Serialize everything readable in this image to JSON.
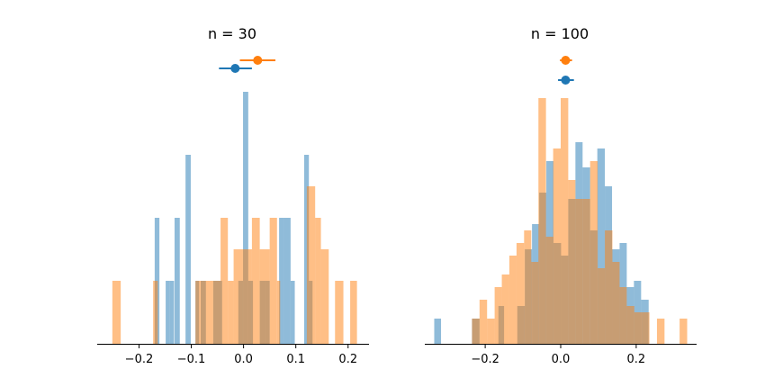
{
  "colors": {
    "series_a": "#1f77b4",
    "series_b": "#ff7f0e",
    "axis": "#000000"
  },
  "chart_data": [
    {
      "type": "histogram",
      "title": "n = 30",
      "xlim": [
        -0.28,
        0.24
      ],
      "ylim": [
        0,
        4.2
      ],
      "xticks": [
        -0.2,
        -0.1,
        0.0,
        0.1,
        0.2
      ],
      "xtick_labels": [
        "−0.2",
        "−0.1",
        "0.0",
        "0.1",
        "0.2"
      ],
      "grid": false,
      "yaxis_visible": false,
      "series": [
        {
          "color_key": "series_a",
          "alpha": 0.5,
          "bins": [
            [
              -0.17,
              -0.161,
              2
            ],
            [
              -0.149,
              -0.141,
              1
            ],
            [
              -0.141,
              -0.133,
              1
            ],
            [
              -0.132,
              -0.122,
              2
            ],
            [
              -0.111,
              -0.101,
              3
            ],
            [
              -0.092,
              -0.085,
              1
            ],
            [
              -0.082,
              -0.072,
              1
            ],
            [
              -0.058,
              -0.051,
              1
            ],
            [
              -0.051,
              -0.041,
              1
            ],
            [
              -0.01,
              -0.001,
              1
            ],
            [
              -0.001,
              0.009,
              4
            ],
            [
              0.009,
              0.018,
              1
            ],
            [
              0.031,
              0.041,
              1
            ],
            [
              0.041,
              0.05,
              1
            ],
            [
              0.068,
              0.078,
              2
            ],
            [
              0.078,
              0.09,
              2
            ],
            [
              0.09,
              0.098,
              1
            ],
            [
              0.116,
              0.125,
              3
            ],
            [
              0.125,
              0.132,
              1
            ]
          ],
          "mean": -0.016,
          "ci": [
            -0.047,
            0.016
          ]
        },
        {
          "color_key": "series_b",
          "alpha": 0.5,
          "bins": [
            [
              -0.251,
              -0.235,
              1
            ],
            [
              -0.173,
              -0.164,
              1
            ],
            [
              -0.092,
              -0.083,
              1
            ],
            [
              -0.083,
              -0.058,
              1
            ],
            [
              -0.058,
              -0.044,
              1
            ],
            [
              -0.044,
              -0.03,
              2
            ],
            [
              -0.03,
              -0.019,
              1
            ],
            [
              -0.019,
              -0.002,
              1.5
            ],
            [
              -0.002,
              0.016,
              1.5
            ],
            [
              0.016,
              0.031,
              2
            ],
            [
              0.031,
              0.05,
              1.5
            ],
            [
              0.05,
              0.064,
              2
            ],
            [
              0.064,
              0.07,
              1
            ],
            [
              0.121,
              0.137,
              2.5
            ],
            [
              0.137,
              0.148,
              2
            ],
            [
              0.148,
              0.163,
              1.5
            ],
            [
              0.175,
              0.191,
              1
            ],
            [
              0.204,
              0.217,
              1
            ]
          ],
          "mean": 0.027,
          "ci": -0.007
        }
      ]
    },
    {
      "type": "histogram",
      "title": "n = 100",
      "xlim": [
        -0.36,
        0.36
      ],
      "ylim": [
        0,
        4.2
      ],
      "xticks": [
        -0.2,
        0.0,
        0.2
      ],
      "xtick_labels": [
        "−0.2",
        "0.0",
        "0.2"
      ],
      "grid": false,
      "yaxis_visible": false,
      "series": [
        {
          "color_key": "series_a",
          "alpha": 0.5,
          "bins": [
            [
              -0.335,
              -0.317,
              0.4
            ],
            [
              -0.235,
              -0.215,
              0.4
            ],
            [
              -0.165,
              -0.15,
              0.6
            ],
            [
              -0.115,
              -0.095,
              0.6
            ],
            [
              -0.095,
              -0.076,
              1.5
            ],
            [
              -0.076,
              -0.057,
              1.9
            ],
            [
              -0.057,
              -0.038,
              2.4
            ],
            [
              -0.038,
              -0.019,
              2.9
            ],
            [
              -0.019,
              0.001,
              1.6
            ],
            [
              0.001,
              0.02,
              1.4
            ],
            [
              0.02,
              0.039,
              2.3
            ],
            [
              0.039,
              0.058,
              3.2
            ],
            [
              0.058,
              0.078,
              2.8
            ],
            [
              0.078,
              0.097,
              1.8
            ],
            [
              0.097,
              0.117,
              3.1
            ],
            [
              0.117,
              0.136,
              2.5
            ],
            [
              0.136,
              0.156,
              1.5
            ],
            [
              0.156,
              0.175,
              1.6
            ],
            [
              0.175,
              0.194,
              0.9
            ],
            [
              0.194,
              0.213,
              1.0
            ],
            [
              0.213,
              0.233,
              0.7
            ]
          ],
          "mean": 0.013,
          "ci": [
            -0.007,
            0.035
          ]
        },
        {
          "color_key": "series_b",
          "alpha": 0.5,
          "bins": [
            [
              -0.235,
              -0.215,
              0.4
            ],
            [
              -0.215,
              -0.195,
              0.7
            ],
            [
              -0.195,
              -0.175,
              0.4
            ],
            [
              -0.175,
              -0.156,
              0.9
            ],
            [
              -0.156,
              -0.136,
              1.1
            ],
            [
              -0.136,
              -0.117,
              1.4
            ],
            [
              -0.117,
              -0.097,
              1.6
            ],
            [
              -0.097,
              -0.078,
              1.8
            ],
            [
              -0.078,
              -0.059,
              1.3
            ],
            [
              -0.059,
              -0.039,
              3.9
            ],
            [
              -0.039,
              -0.02,
              1.7
            ],
            [
              -0.02,
              0.0,
              3.1
            ],
            [
              0.0,
              0.02,
              3.9
            ],
            [
              0.02,
              0.039,
              2.6
            ],
            [
              0.039,
              0.059,
              2.3
            ],
            [
              0.059,
              0.078,
              2.3
            ],
            [
              0.078,
              0.098,
              2.9
            ],
            [
              0.098,
              0.117,
              1.2
            ],
            [
              0.117,
              0.137,
              1.8
            ],
            [
              0.137,
              0.156,
              1.3
            ],
            [
              0.156,
              0.175,
              0.9
            ],
            [
              0.175,
              0.195,
              0.6
            ],
            [
              0.195,
              0.215,
              0.5
            ],
            [
              0.215,
              0.235,
              0.5
            ],
            [
              0.255,
              0.275,
              0.4
            ],
            [
              0.315,
              0.335,
              0.4
            ]
          ],
          "mean": 0.013,
          "ci": [
            -0.002,
            0.03
          ]
        }
      ]
    }
  ]
}
